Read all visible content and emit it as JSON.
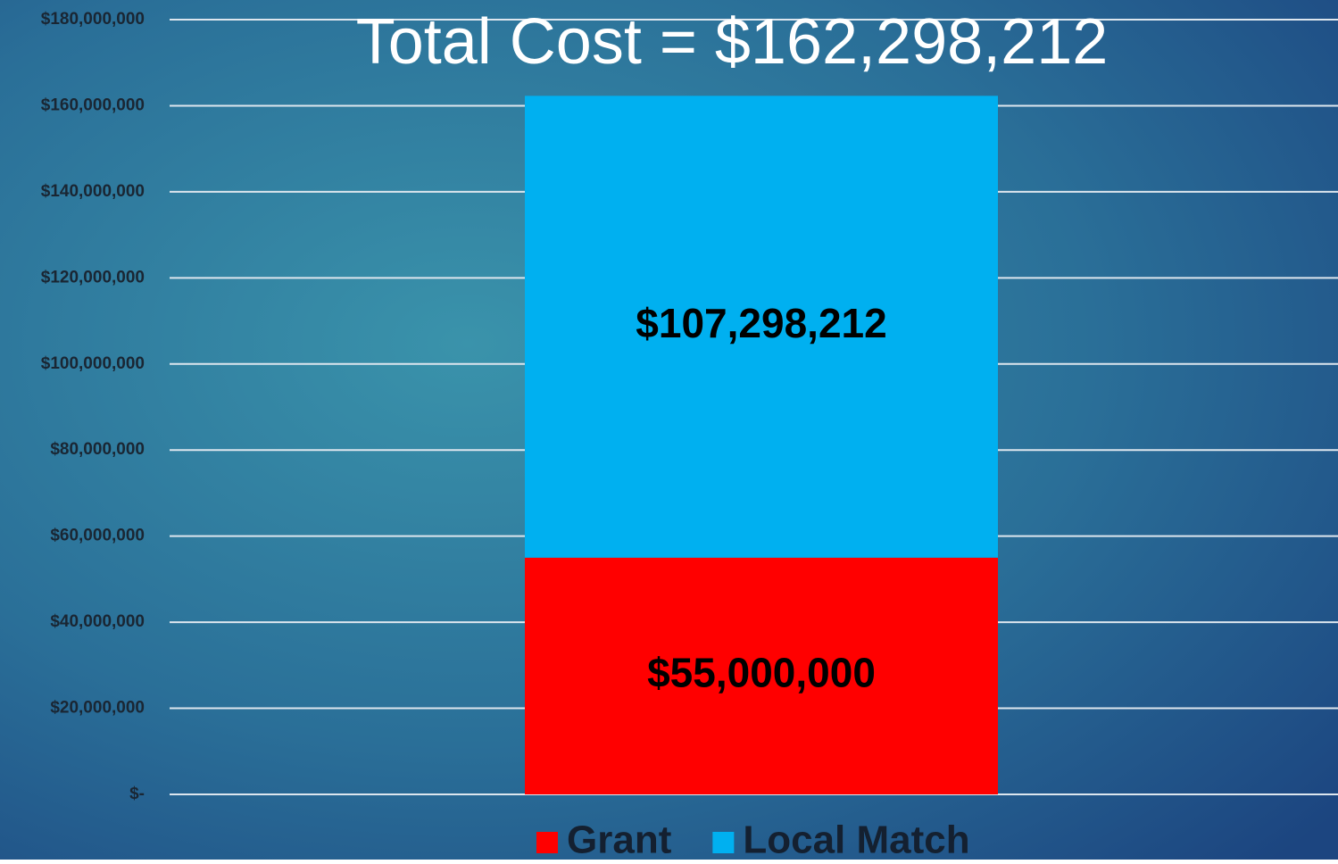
{
  "chart_data": {
    "type": "stacked_bar",
    "title": "Total Cost = $162,298,212",
    "categories": [
      null
    ],
    "series": [
      {
        "name": "Grant",
        "color": "#ff0000",
        "values": [
          55000000
        ],
        "value_labels": [
          "$55,000,000"
        ]
      },
      {
        "name": "Local Match",
        "color": "#00b0f0",
        "values": [
          107298212
        ],
        "value_labels": [
          "$107,298,212"
        ]
      }
    ],
    "ylim": [
      0,
      180000000
    ],
    "yticks": [
      {
        "value": 0,
        "label": "$-"
      },
      {
        "value": 20000000,
        "label": "$20,000,000"
      },
      {
        "value": 40000000,
        "label": "$40,000,000"
      },
      {
        "value": 60000000,
        "label": "$60,000,000"
      },
      {
        "value": 80000000,
        "label": "$80,000,000"
      },
      {
        "value": 100000000,
        "label": "$100,000,000"
      },
      {
        "value": 120000000,
        "label": "$120,000,000"
      },
      {
        "value": 140000000,
        "label": "$140,000,000"
      },
      {
        "value": 160000000,
        "label": "$160,000,000"
      },
      {
        "value": 180000000,
        "label": "$180,000,000"
      }
    ],
    "grid": true,
    "legend": "bottom"
  }
}
